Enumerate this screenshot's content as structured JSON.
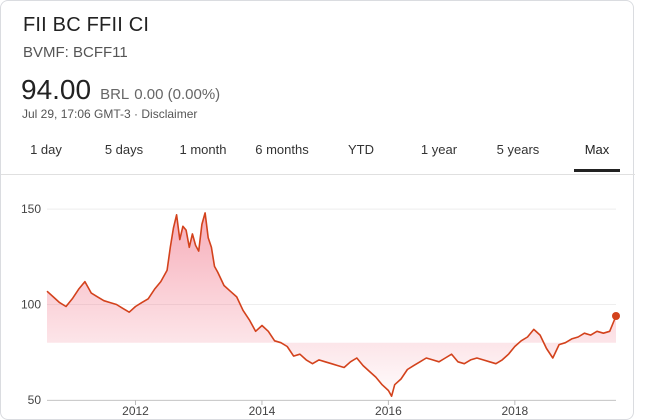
{
  "header": {
    "title": "FII BC FFII CI",
    "ticker": "BVMF: BCFF11",
    "price": "94.00",
    "currency": "BRL",
    "change": "0.00 (0.00%)",
    "timestamp": "Jul 29, 17:06 GMT-3 · Disclaimer"
  },
  "tabs": [
    {
      "label": "1 day",
      "active": false
    },
    {
      "label": "5 days",
      "active": false
    },
    {
      "label": "1 month",
      "active": false
    },
    {
      "label": "6 months",
      "active": false
    },
    {
      "label": "YTD",
      "active": false
    },
    {
      "label": "1 year",
      "active": false
    },
    {
      "label": "5 years",
      "active": false
    },
    {
      "label": "Max",
      "active": true
    }
  ],
  "colors": {
    "line": "#d3421c",
    "fill_top": "#f06a80",
    "grid": "#eeeeee"
  },
  "chart_data": {
    "type": "area",
    "title": "",
    "xlabel": "",
    "ylabel": "",
    "xlim": [
      2010.6,
      2019.6
    ],
    "ylim": [
      50,
      160
    ],
    "yticks": [
      50,
      100,
      150
    ],
    "xticks": [
      2012,
      2014,
      2016,
      2018
    ],
    "grid": true,
    "series": [
      {
        "x": [
          2010.6,
          2010.7,
          2010.8,
          2010.9,
          2011.0,
          2011.1,
          2011.2,
          2011.3,
          2011.4,
          2011.5,
          2011.6,
          2011.7,
          2011.8,
          2011.9,
          2012.0,
          2012.1,
          2012.2,
          2012.3,
          2012.4,
          2012.5,
          2012.55,
          2012.6,
          2012.65,
          2012.7,
          2012.75,
          2012.8,
          2012.85,
          2012.9,
          2012.95,
          2013.0,
          2013.05,
          2013.1,
          2013.15,
          2013.2,
          2013.25,
          2013.3,
          2013.4,
          2013.5,
          2013.6,
          2013.7,
          2013.8,
          2013.9,
          2014.0,
          2014.1,
          2014.2,
          2014.3,
          2014.4,
          2014.5,
          2014.6,
          2014.7,
          2014.8,
          2014.9,
          2015.0,
          2015.1,
          2015.2,
          2015.3,
          2015.4,
          2015.5,
          2015.6,
          2015.7,
          2015.8,
          2015.9,
          2016.0,
          2016.05,
          2016.1,
          2016.2,
          2016.3,
          2016.4,
          2016.5,
          2016.6,
          2016.7,
          2016.8,
          2016.9,
          2017.0,
          2017.1,
          2017.2,
          2017.3,
          2017.4,
          2017.5,
          2017.6,
          2017.7,
          2017.8,
          2017.9,
          2018.0,
          2018.1,
          2018.2,
          2018.3,
          2018.4,
          2018.5,
          2018.6,
          2018.7,
          2018.8,
          2018.9,
          2019.0,
          2019.1,
          2019.2,
          2019.3,
          2019.4,
          2019.5,
          2019.6
        ],
        "values": [
          107,
          104,
          101,
          99,
          103,
          108,
          112,
          106,
          104,
          102,
          101,
          100,
          98,
          96,
          99,
          101,
          103,
          108,
          112,
          118,
          130,
          140,
          147,
          134,
          141,
          139,
          130,
          137,
          131,
          128,
          142,
          148,
          135,
          130,
          120,
          117,
          110,
          107,
          104,
          97,
          92,
          86,
          89,
          86,
          81,
          80,
          78,
          73,
          74,
          71,
          69,
          71,
          70,
          69,
          68,
          67,
          70,
          72,
          68,
          65,
          62,
          58,
          55,
          52,
          58,
          61,
          66,
          68,
          70,
          72,
          71,
          70,
          72,
          74,
          70,
          69,
          71,
          72,
          71,
          70,
          69,
          71,
          74,
          78,
          81,
          83,
          87,
          84,
          77,
          72,
          79,
          80,
          82,
          83,
          85,
          84,
          86,
          85,
          86,
          94
        ]
      }
    ]
  }
}
